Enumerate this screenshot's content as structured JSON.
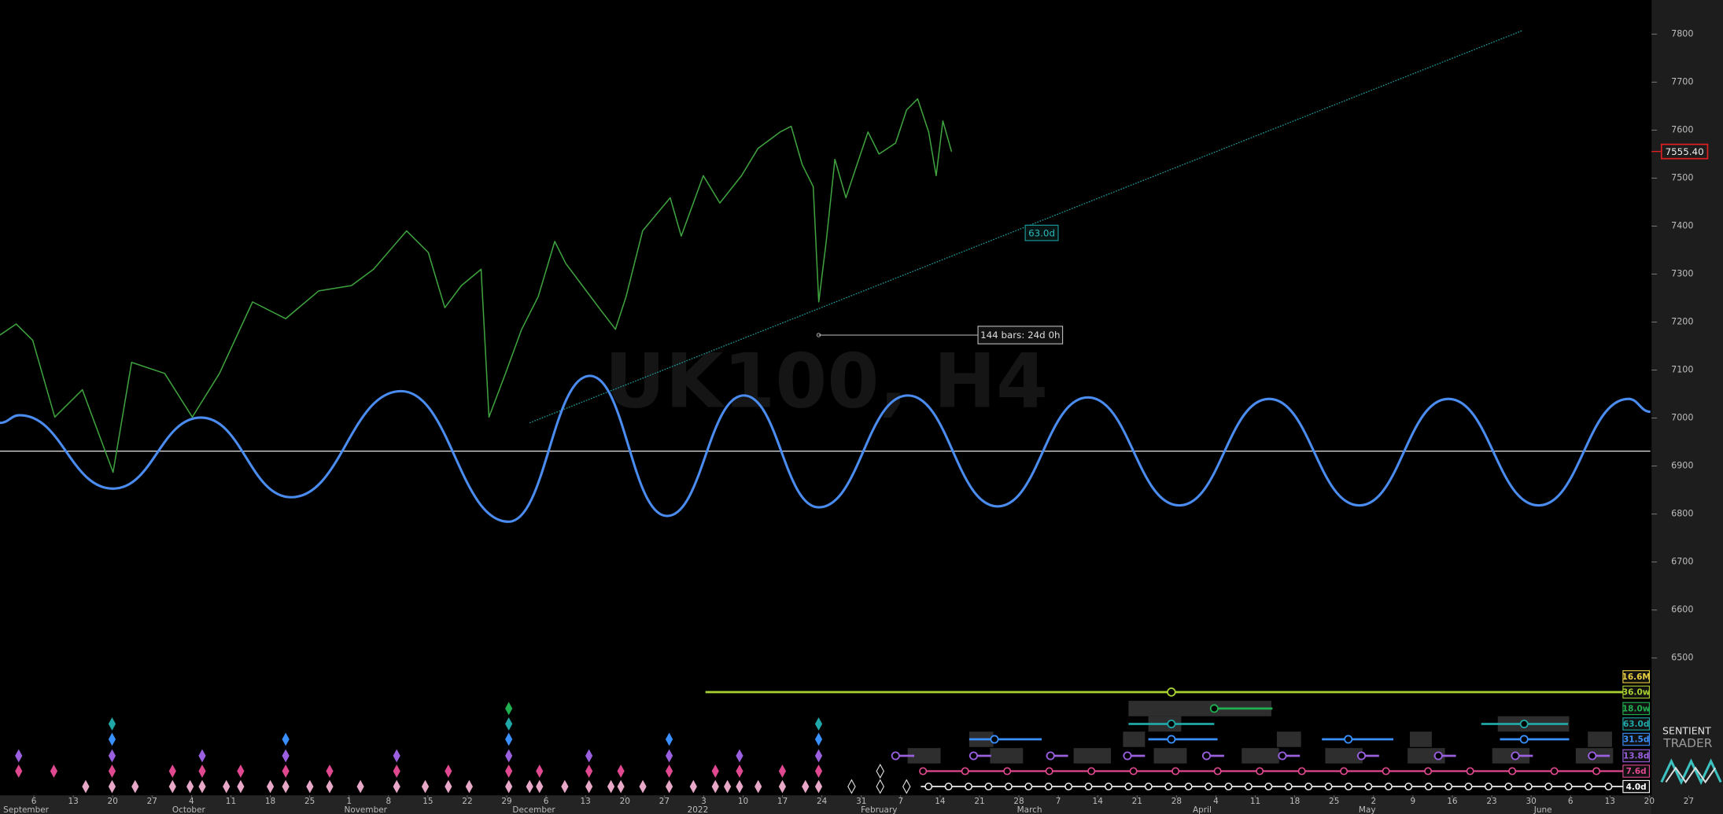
{
  "chart_data": {
    "type": "line",
    "watermark": "UK100, H4",
    "xlim": [
      -0.86,
      42.87
    ],
    "ylim": [
      6214,
      7871
    ],
    "yticks": [
      6500,
      6600,
      6700,
      6800,
      6900,
      7000,
      7100,
      7200,
      7300,
      7400,
      7500,
      7600,
      7700,
      7800
    ],
    "xticks": [
      {
        "value": 0,
        "label": "6"
      },
      {
        "value": 1,
        "label": "13"
      },
      {
        "value": 2,
        "label": "20"
      },
      {
        "value": 3,
        "label": "27"
      },
      {
        "value": 4,
        "label": "4"
      },
      {
        "value": 5,
        "label": "11"
      },
      {
        "value": 6,
        "label": "18"
      },
      {
        "value": 7,
        "label": "25"
      },
      {
        "value": 8,
        "label": "1"
      },
      {
        "value": 9,
        "label": "8"
      },
      {
        "value": 10,
        "label": "15"
      },
      {
        "value": 11,
        "label": "22"
      },
      {
        "value": 12,
        "label": "29"
      },
      {
        "value": 13,
        "label": "6"
      },
      {
        "value": 14,
        "label": "13"
      },
      {
        "value": 15,
        "label": "20"
      },
      {
        "value": 16,
        "label": "27"
      },
      {
        "value": 17,
        "label": "3"
      },
      {
        "value": 18,
        "label": "10"
      },
      {
        "value": 19,
        "label": "17"
      },
      {
        "value": 20,
        "label": "24"
      },
      {
        "value": 21,
        "label": "31"
      },
      {
        "value": 22,
        "label": "7"
      },
      {
        "value": 23,
        "label": "14"
      },
      {
        "value": 24,
        "label": "21"
      },
      {
        "value": 25,
        "label": "28"
      },
      {
        "value": 26,
        "label": "7"
      },
      {
        "value": 27,
        "label": "14"
      },
      {
        "value": 28,
        "label": "21"
      },
      {
        "value": 29,
        "label": "28"
      },
      {
        "value": 30,
        "label": "4"
      },
      {
        "value": 31,
        "label": "11"
      },
      {
        "value": 32,
        "label": "18"
      },
      {
        "value": 33,
        "label": "25"
      },
      {
        "value": 34,
        "label": "2"
      },
      {
        "value": 35,
        "label": "9"
      },
      {
        "value": 36,
        "label": "16"
      },
      {
        "value": 37,
        "label": "23"
      },
      {
        "value": 38,
        "label": "30"
      },
      {
        "value": 39,
        "label": "6"
      },
      {
        "value": 40,
        "label": "13"
      },
      {
        "value": 41,
        "label": "20"
      },
      {
        "value": 42,
        "label": "27"
      }
    ],
    "month_labels": [
      {
        "value": -0.2,
        "label": "September"
      },
      {
        "value": 3.93,
        "label": "October"
      },
      {
        "value": 8.42,
        "label": "November"
      },
      {
        "value": 12.69,
        "label": "December"
      },
      {
        "value": 16.85,
        "label": "2022"
      },
      {
        "value": 21.45,
        "label": "February"
      },
      {
        "value": 25.27,
        "label": "March"
      },
      {
        "value": 29.65,
        "label": "April"
      },
      {
        "value": 33.84,
        "label": "May"
      },
      {
        "value": 38.3,
        "label": "June"
      }
    ],
    "current_price": {
      "value": 7555.4,
      "label": "7555.40"
    },
    "reference_line": 6931,
    "series": [
      {
        "color": "#3ea23e",
        "smooth": false,
        "x": [
          -0.86,
          -0.45,
          -0.03,
          0.53,
          1.23,
          2.01,
          2.48,
          3.32,
          4.02,
          4.71,
          5.55,
          6.39,
          7.23,
          8.06,
          8.62,
          9.46,
          10.01,
          10.43,
          10.85,
          11.35,
          11.55,
          11.97,
          12.38,
          12.8,
          13.22,
          13.5,
          13.92,
          14.34,
          14.76,
          15.03,
          15.45,
          16.15,
          16.43,
          16.99,
          17.41,
          17.96,
          18.38,
          18.94,
          19.22,
          19.5,
          19.78,
          19.92,
          20.11,
          20.33,
          20.61,
          20.89,
          21.17,
          21.45,
          21.87,
          22.15,
          22.43,
          22.71,
          22.9,
          23.07,
          23.29
        ],
        "values": [
          7173,
          7196,
          7162,
          7002,
          7059,
          6887,
          7116,
          7093,
          7002,
          7093,
          7242,
          7207,
          7265,
          7276,
          7310,
          7390,
          7345,
          7230,
          7276,
          7310,
          7002,
          7093,
          7185,
          7253,
          7368,
          7322,
          7276,
          7230,
          7185,
          7253,
          7390,
          7459,
          7379,
          7505,
          7448,
          7505,
          7562,
          7596,
          7608,
          7528,
          7482,
          7242,
          7368,
          7539,
          7459,
          7528,
          7596,
          7550,
          7573,
          7642,
          7665,
          7596,
          7505,
          7619,
          7555
        ]
      },
      {
        "color": "#4a8cf0",
        "smooth": true,
        "x": [
          -0.86,
          -0.36,
          2.01,
          4.24,
          6.53,
          9.32,
          12.05,
          14.11,
          16.07,
          18.02,
          19.92,
          22.18,
          24.46,
          26.75,
          29.07,
          31.35,
          33.64,
          35.9,
          38.19,
          40.47,
          41.03
        ],
        "values": [
          6990,
          7006,
          6853,
          7001,
          6835,
          7056,
          6784,
          7088,
          6796,
          7047,
          6814,
          7047,
          6816,
          7043,
          6818,
          7040,
          6818,
          7040,
          6818,
          7040,
          7013
        ]
      }
    ],
    "trendline": {
      "color": "#1f9e9e",
      "x": [
        12.58,
        37.77
      ],
      "values": [
        6990,
        7807
      ],
      "label": "63.0d"
    },
    "measure": {
      "label": "144 bars: 24d 0h"
    },
    "cycles": [
      {
        "name": "16.6M",
        "color": "#e8d040"
      },
      {
        "name": "36.0w",
        "color": "#a8d030"
      },
      {
        "name": "18.0w",
        "color": "#20b050"
      },
      {
        "name": "63.0d",
        "color": "#20a8a8"
      },
      {
        "name": "31.5d",
        "color": "#3a90ff"
      },
      {
        "name": "13.8d",
        "color": "#9a60e0"
      },
      {
        "name": "7.6d",
        "color": "#e04890"
      },
      {
        "name": "4.0d",
        "color": "#ffffff"
      }
    ],
    "brand": [
      "SENTIENT",
      "TRADER"
    ]
  }
}
